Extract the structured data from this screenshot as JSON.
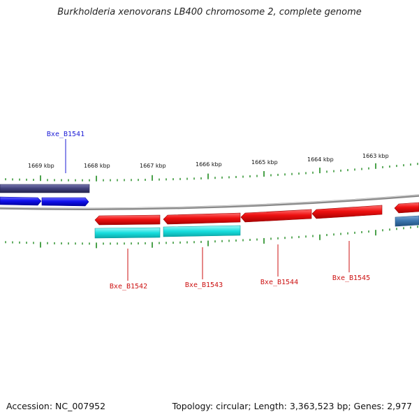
{
  "title": "Burkholderia xenovorans LB400 chromosome 2, complete genome",
  "footer": {
    "accession": "Accession: NC_007952",
    "stats": "Topology: circular; Length: 3,363,523 bp; Genes: 2,977"
  },
  "ruler": {
    "labels": [
      "1669 kbp",
      "1668 kbp",
      "1667 kbp",
      "1666 kbp",
      "1665 kbp",
      "1664 kbp",
      "1663 kbp"
    ]
  },
  "gene_labels": {
    "top": [
      {
        "name": "Bxe_B1541",
        "color": "#1b1bd6"
      }
    ],
    "bottom": [
      {
        "name": "Bxe_B1542",
        "color": "#cc1111"
      },
      {
        "name": "Bxe_B1543",
        "color": "#cc1111"
      },
      {
        "name": "Bxe_B1544",
        "color": "#cc1111"
      },
      {
        "name": "Bxe_B1545",
        "color": "#cc1111"
      }
    ]
  },
  "colors": {
    "backbone": "#8a8a8a",
    "tick": "#1e8a1e",
    "forward_gene": "#1010e8",
    "reverse_gene": "#e01010",
    "forward_cds": "#40407a",
    "reverse_cds": "#18dede",
    "reverse_cds_other": "#3a74ad"
  }
}
